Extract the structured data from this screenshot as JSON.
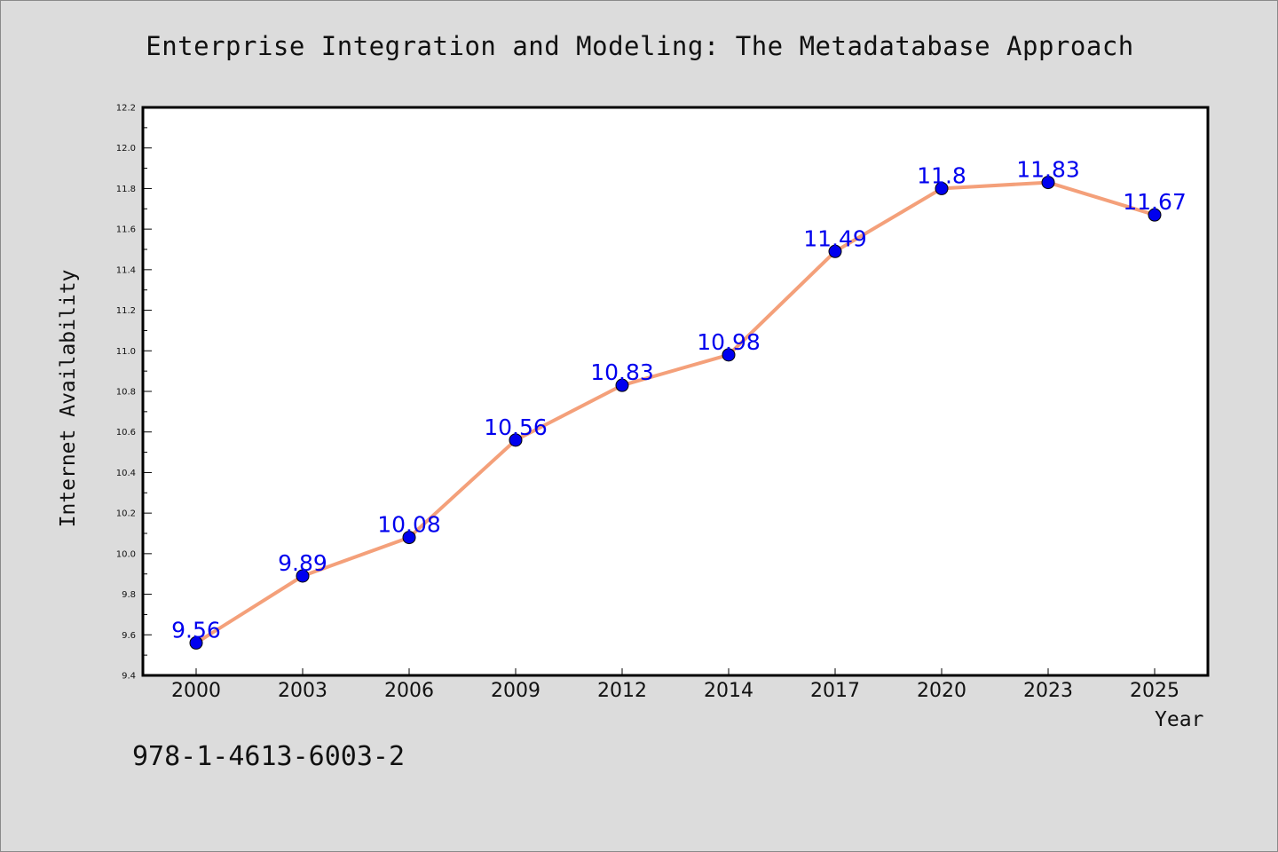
{
  "chart_data": {
    "type": "line",
    "title": "Enterprise Integration and Modeling: The Metadatabase Approach",
    "xlabel": "Year",
    "ylabel": "Internet Availability",
    "categories": [
      "2000",
      "2003",
      "2006",
      "2009",
      "2012",
      "2014",
      "2017",
      "2020",
      "2023",
      "2025"
    ],
    "series": [
      {
        "values": [
          9.56,
          9.89,
          10.08,
          10.56,
          10.83,
          10.98,
          11.49,
          11.8,
          11.83,
          11.67
        ],
        "line_color": "#f4a07a",
        "marker_color": "#0000ee"
      }
    ],
    "data_labels": [
      "9.56",
      "9.89",
      "10.08",
      "10.56",
      "10.83",
      "10.98",
      "11.49",
      "11.8",
      "11.83",
      "11.67"
    ],
    "ylim": [
      9.4,
      12.2
    ],
    "yticks": [
      "9.4",
      "9.6",
      "9.8",
      "10.0",
      "10.2",
      "10.4",
      "10.6",
      "10.8",
      "11.0",
      "11.2",
      "11.4",
      "11.6",
      "11.8",
      "12.0",
      "12.2"
    ],
    "grid": false,
    "legend": "none"
  },
  "annotation": {
    "isbn": "978-1-4613-6003-2"
  },
  "colors": {
    "background": "#dcdcdc",
    "plot_background": "#ffffff"
  }
}
